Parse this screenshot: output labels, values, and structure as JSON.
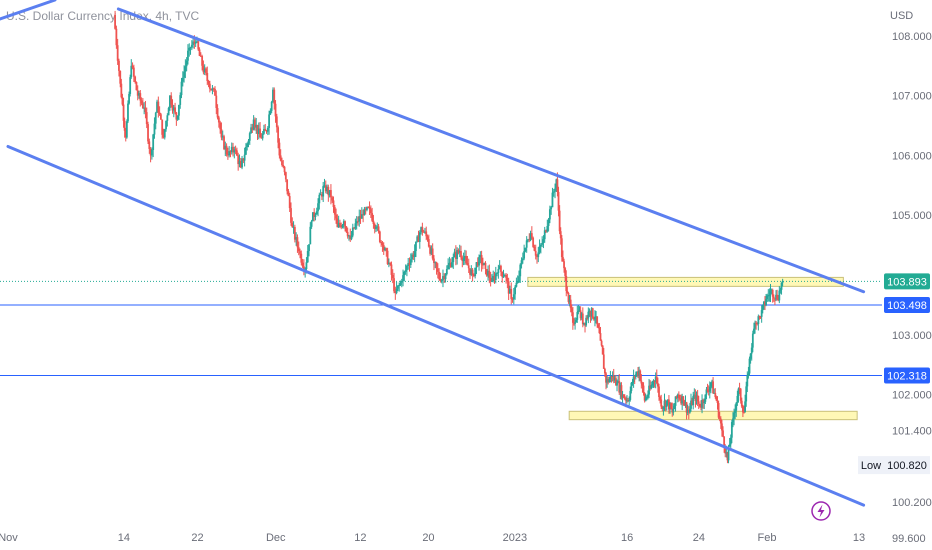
{
  "chart_data": {
    "type": "candlestick",
    "title": "U.S. Dollar Currency Index, 4h, TVC",
    "currency": "USD",
    "y_ticks": [
      "108.000",
      "107.000",
      "106.000",
      "105.000",
      "103.000",
      "102.000",
      "101.400",
      "100.200",
      "99.600"
    ],
    "x_ticks": [
      "Nov",
      "14",
      "22",
      "Dec",
      "12",
      "20",
      "2023",
      "16",
      "24",
      "Feb",
      "13"
    ],
    "ylim": [
      99.4,
      108.6
    ],
    "price_tags": [
      {
        "value": 103.893,
        "label": "103.893",
        "color": "#22ab94"
      },
      {
        "value": 103.498,
        "label": "103.498",
        "color": "#2962ff"
      },
      {
        "value": 102.318,
        "label": "102.318",
        "color": "#2962ff"
      }
    ],
    "low": {
      "label": "Low",
      "value": 100.82,
      "value_label": "100.820"
    },
    "horizontal_levels": [
      103.498,
      102.318
    ],
    "channel_upper": {
      "from": [
        12.0,
        108.45
      ],
      "to": [
        93.0,
        103.72
      ]
    },
    "channel_lower": {
      "from": [
        0.0,
        106.15
      ],
      "to": [
        93.0,
        100.15
      ]
    },
    "zones": [
      {
        "from_x": 56.5,
        "to_x": 90.8,
        "top": 103.96,
        "bottom": 103.81
      },
      {
        "from_x": 61.0,
        "to_x": 92.3,
        "top": 101.72,
        "bottom": 101.58
      }
    ],
    "candles_close_path": [
      [
        11.5,
        108.35
      ],
      [
        12.2,
        107.2
      ],
      [
        12.8,
        106.3
      ],
      [
        13.4,
        107.5
      ],
      [
        14.1,
        107.0
      ],
      [
        14.8,
        106.8
      ],
      [
        15.5,
        106.0
      ],
      [
        16.2,
        106.9
      ],
      [
        16.9,
        106.3
      ],
      [
        17.6,
        107.0
      ],
      [
        18.3,
        106.6
      ],
      [
        19.0,
        107.3
      ],
      [
        19.7,
        107.8
      ],
      [
        20.4,
        107.9
      ],
      [
        21.1,
        107.5
      ],
      [
        21.8,
        107.2
      ],
      [
        22.5,
        107.0
      ],
      [
        23.2,
        106.3
      ],
      [
        23.9,
        106.0
      ],
      [
        24.6,
        106.1
      ],
      [
        25.3,
        105.8
      ],
      [
        26.0,
        106.2
      ],
      [
        26.7,
        106.6
      ],
      [
        27.4,
        106.3
      ],
      [
        28.1,
        106.4
      ],
      [
        28.8,
        107.1
      ],
      [
        29.5,
        106.0
      ],
      [
        30.2,
        105.6
      ],
      [
        30.9,
        104.8
      ],
      [
        31.6,
        104.4
      ],
      [
        32.3,
        104.1
      ],
      [
        33.0,
        104.9
      ],
      [
        33.7,
        105.2
      ],
      [
        34.4,
        105.5
      ],
      [
        35.1,
        105.3
      ],
      [
        35.8,
        104.8
      ],
      [
        36.5,
        104.9
      ],
      [
        37.2,
        104.6
      ],
      [
        37.9,
        104.9
      ],
      [
        38.6,
        105.0
      ],
      [
        39.3,
        105.1
      ],
      [
        40.0,
        104.8
      ],
      [
        40.7,
        104.5
      ],
      [
        41.4,
        104.2
      ],
      [
        42.1,
        103.7
      ],
      [
        42.8,
        103.9
      ],
      [
        43.5,
        104.2
      ],
      [
        44.2,
        104.4
      ],
      [
        44.9,
        104.8
      ],
      [
        45.6,
        104.6
      ],
      [
        46.3,
        104.2
      ],
      [
        47.0,
        103.9
      ],
      [
        47.7,
        104.1
      ],
      [
        48.4,
        104.3
      ],
      [
        49.1,
        104.4
      ],
      [
        49.8,
        104.2
      ],
      [
        50.5,
        104.0
      ],
      [
        51.2,
        104.3
      ],
      [
        51.9,
        104.1
      ],
      [
        52.6,
        103.9
      ],
      [
        53.3,
        104.1
      ],
      [
        54.0,
        104.0
      ],
      [
        54.7,
        103.6
      ],
      [
        55.4,
        103.9
      ],
      [
        56.1,
        104.4
      ],
      [
        56.8,
        104.7
      ],
      [
        57.5,
        104.3
      ],
      [
        58.2,
        104.6
      ],
      [
        58.9,
        105.1
      ],
      [
        59.6,
        105.6
      ],
      [
        60.2,
        104.3
      ],
      [
        60.8,
        103.7
      ],
      [
        61.4,
        103.2
      ],
      [
        62.0,
        103.4
      ],
      [
        62.6,
        103.2
      ],
      [
        63.2,
        103.4
      ],
      [
        63.8,
        103.3
      ],
      [
        64.4,
        102.9
      ],
      [
        65.0,
        102.2
      ],
      [
        65.6,
        102.3
      ],
      [
        66.2,
        102.2
      ],
      [
        66.8,
        102.0
      ],
      [
        67.4,
        101.9
      ],
      [
        68.0,
        102.3
      ],
      [
        68.6,
        102.4
      ],
      [
        69.2,
        101.9
      ],
      [
        69.8,
        102.1
      ],
      [
        70.4,
        102.3
      ],
      [
        71.0,
        101.8
      ],
      [
        71.6,
        101.9
      ],
      [
        72.2,
        101.7
      ],
      [
        72.8,
        102.0
      ],
      [
        73.4,
        101.9
      ],
      [
        74.0,
        101.7
      ],
      [
        74.6,
        102.0
      ],
      [
        75.2,
        101.8
      ],
      [
        75.8,
        102.0
      ],
      [
        76.4,
        102.2
      ],
      [
        77.0,
        101.9
      ],
      [
        77.6,
        101.4
      ],
      [
        78.2,
        100.9
      ],
      [
        78.8,
        101.6
      ],
      [
        79.4,
        102.1
      ],
      [
        80.0,
        101.7
      ],
      [
        80.6,
        102.6
      ],
      [
        81.2,
        103.2
      ],
      [
        81.8,
        103.3
      ],
      [
        82.4,
        103.6
      ],
      [
        83.0,
        103.75
      ],
      [
        83.6,
        103.6
      ],
      [
        84.2,
        103.9
      ]
    ]
  }
}
